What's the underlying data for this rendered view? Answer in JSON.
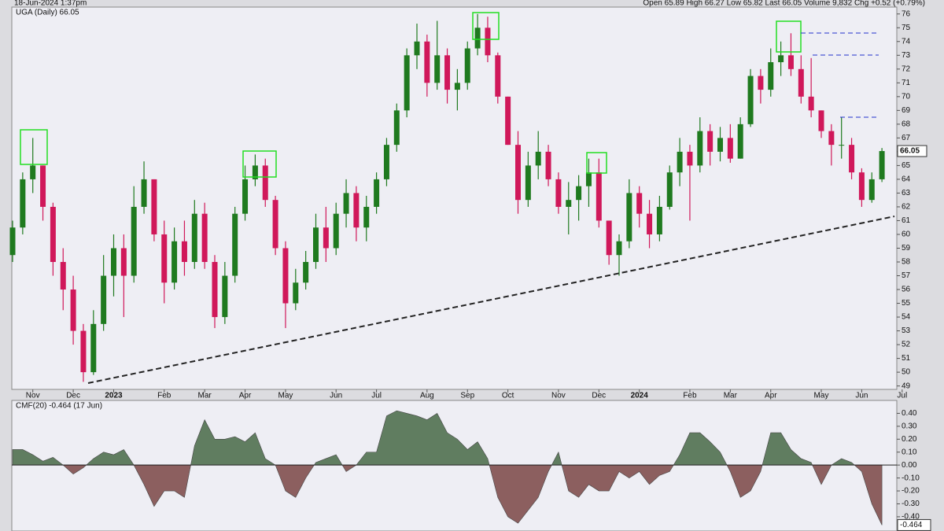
{
  "chart_data": [
    {
      "type": "candlestick",
      "title": "UGA (Daily) 66.05",
      "date_time": "18-Jun-2024 1:37pm",
      "quote_summary": "Open 65.89 High 66.27 Low 65.82 Last 66.05 Volume 9,832 Chg +0.52 (+0.79%)",
      "categories": [
        null,
        null,
        "Nov",
        null,
        null,
        null,
        "Dec",
        null,
        null,
        null,
        "2023",
        null,
        null,
        null,
        null,
        "Feb",
        null,
        null,
        null,
        "Mar",
        null,
        null,
        null,
        "Apr",
        null,
        null,
        null,
        "May",
        null,
        null,
        null,
        null,
        "Jun",
        null,
        null,
        null,
        "Jul",
        null,
        null,
        null,
        null,
        "Aug",
        null,
        null,
        null,
        "Sep",
        null,
        null,
        null,
        "Oct",
        null,
        null,
        null,
        null,
        "Nov",
        null,
        null,
        null,
        "Dec",
        null,
        null,
        null,
        "2024",
        null,
        null,
        null,
        null,
        "Feb",
        null,
        null,
        null,
        "Mar",
        null,
        null,
        null,
        "Apr",
        null,
        null,
        null,
        null,
        "May",
        null,
        null,
        null,
        "Jun",
        null,
        null,
        null,
        "Jul"
      ],
      "open": [
        58.5,
        60.5,
        64,
        65,
        62,
        58,
        56,
        53,
        50,
        53.5,
        57,
        59,
        57,
        62,
        64,
        60,
        56.5,
        59.5,
        58,
        61.5,
        58,
        54,
        57,
        61.5,
        64,
        65,
        62.5,
        59,
        55,
        56.5,
        58,
        60.5,
        59,
        61.5,
        63,
        60.5,
        62,
        64,
        66.5,
        69,
        73,
        74,
        71,
        73,
        70.5,
        71,
        73.5,
        75,
        73,
        70,
        66.5,
        62.5,
        65,
        66,
        64,
        62,
        62.5,
        63.5,
        64.5,
        61,
        58.5,
        59.5,
        63,
        61.5,
        60,
        62,
        64.5,
        66,
        65,
        67.5,
        66,
        67,
        65.5,
        68,
        71.5,
        70.5,
        72.5,
        73,
        72,
        70,
        69,
        67.5,
        66.5,
        66.5,
        64.5,
        62.5,
        64,
        null,
        null
      ],
      "high": [
        61,
        64.5,
        67,
        65,
        62.3,
        59,
        57,
        53.5,
        54.5,
        58.5,
        60,
        60,
        63.5,
        65.3,
        64,
        61,
        60.5,
        61,
        62.5,
        62.3,
        58.5,
        58,
        62,
        65,
        65.8,
        65.5,
        62.8,
        59.5,
        57.5,
        58.8,
        61.5,
        62,
        62.3,
        64,
        63.5,
        62.8,
        64.5,
        67,
        69.5,
        73.5,
        75.3,
        74.5,
        75.5,
        73.5,
        72,
        74,
        76,
        75.8,
        73.2,
        70,
        67.5,
        66,
        67.5,
        66.5,
        64.5,
        63.8,
        64.3,
        65.5,
        65.5,
        61,
        60,
        64,
        63.5,
        62.5,
        62.8,
        65,
        67,
        66.5,
        68.5,
        68,
        67.8,
        68,
        68.5,
        72,
        72,
        73.5,
        74,
        74.6,
        73,
        72.8,
        69,
        68,
        68.5,
        67,
        64.8,
        64.5,
        66.27,
        null,
        null
      ],
      "low": [
        58,
        60,
        63,
        61,
        57,
        54.5,
        52,
        49.3,
        49.8,
        53,
        55.5,
        54,
        56.5,
        61.5,
        59.5,
        55,
        56,
        57,
        57.5,
        57.5,
        53.2,
        53.5,
        56.5,
        61,
        63.5,
        62,
        58.5,
        53.2,
        54.5,
        56,
        57.5,
        58,
        58.5,
        60.5,
        59.5,
        59.5,
        61.5,
        63.5,
        66,
        68.5,
        72,
        70,
        70.5,
        69.5,
        69,
        70.5,
        73,
        72.5,
        69.5,
        66.5,
        61.5,
        62,
        64,
        63.5,
        61.5,
        60,
        61,
        62,
        60.5,
        57.8,
        57,
        59,
        60.5,
        59,
        59.5,
        61.8,
        63.5,
        61,
        64.5,
        65,
        65.3,
        65.2,
        65.5,
        67.8,
        69.5,
        70,
        71.5,
        71.5,
        69.5,
        68.5,
        67,
        65,
        65.5,
        64,
        62,
        62.3,
        63.8,
        null,
        null
      ],
      "close": [
        60.5,
        64,
        65,
        62,
        58,
        56,
        53,
        50,
        53.5,
        57,
        59,
        57,
        62,
        64,
        60,
        56.5,
        59.5,
        58,
        61.5,
        58,
        54,
        57,
        61.5,
        64,
        65,
        62.5,
        59,
        55,
        56.5,
        58,
        60.5,
        59,
        61.5,
        63,
        60.5,
        62,
        64,
        66.5,
        69,
        73,
        74,
        71,
        73,
        70.5,
        71,
        73.5,
        75,
        73,
        70,
        66.5,
        62.5,
        65,
        66,
        64,
        62,
        62.5,
        63.5,
        64.5,
        61,
        58.5,
        59.5,
        63,
        61.5,
        60,
        62,
        64.5,
        66,
        65,
        67.5,
        66,
        67,
        65.5,
        68,
        71.5,
        70.5,
        72.5,
        73,
        72,
        70,
        69,
        67.5,
        66.5,
        66.5,
        64.5,
        62.5,
        64,
        66.05,
        null,
        null
      ],
      "up_color": "#1f7a1f",
      "down_color": "#d0185a",
      "ylim": [
        48.75,
        76.5
      ],
      "yticks": [
        49,
        50,
        51,
        52,
        53,
        54,
        55,
        56,
        57,
        58,
        59,
        60,
        61,
        62,
        63,
        64,
        65,
        66,
        67,
        68,
        69,
        70,
        71,
        72,
        73,
        74,
        75,
        76
      ],
      "grid": false
    },
    {
      "type": "area",
      "title": "CMF(20) -0.464 (17 Jun)",
      "values": [
        0.12,
        0.12,
        0.08,
        0.03,
        0.06,
        0.0,
        -0.07,
        -0.02,
        0.05,
        0.1,
        0.08,
        0.12,
        0.0,
        -0.15,
        -0.32,
        -0.2,
        -0.2,
        -0.25,
        0.15,
        0.35,
        0.2,
        0.2,
        0.22,
        0.18,
        0.25,
        0.05,
        0.0,
        -0.2,
        -0.25,
        -0.1,
        0.02,
        0.05,
        0.08,
        -0.05,
        0.0,
        0.1,
        0.1,
        0.38,
        0.42,
        0.4,
        0.38,
        0.35,
        0.4,
        0.25,
        0.2,
        0.12,
        0.18,
        0.05,
        -0.25,
        -0.4,
        -0.45,
        -0.35,
        -0.25,
        -0.05,
        0.1,
        -0.2,
        -0.25,
        -0.15,
        -0.2,
        -0.2,
        -0.05,
        -0.1,
        -0.05,
        -0.15,
        -0.08,
        -0.05,
        0.08,
        0.25,
        0.25,
        0.18,
        0.1,
        -0.05,
        -0.25,
        -0.2,
        -0.05,
        0.25,
        0.25,
        0.12,
        0.05,
        0.02,
        -0.15,
        0.0,
        0.05,
        0.02,
        -0.05,
        -0.3,
        -0.464
      ],
      "positive_color": "#607d60",
      "negative_color": "#8c5f5f",
      "ylim": [
        -0.51,
        0.5
      ],
      "yticks": [
        {
          "value": 0.4,
          "label": "0.40"
        },
        {
          "value": 0.3,
          "label": "0.30"
        },
        {
          "value": 0.2,
          "label": "0.20"
        },
        {
          "value": 0.1,
          "label": "0.10"
        },
        {
          "value": 0,
          "label": "0.00"
        },
        {
          "value": -0.1,
          "label": "-0.10"
        },
        {
          "value": -0.2,
          "label": "-0.20"
        },
        {
          "value": -0.3,
          "label": "-0.30"
        },
        {
          "value": -0.4,
          "label": "-0.40"
        }
      ],
      "grid": false
    }
  ]
}
